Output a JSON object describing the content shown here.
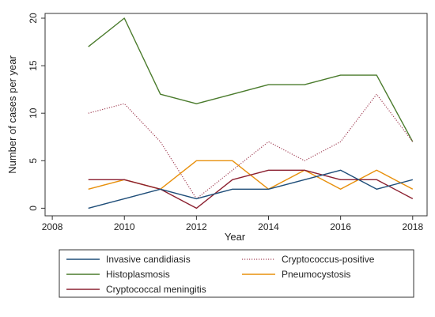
{
  "chart_data": {
    "type": "line",
    "xlabel": "Year",
    "ylabel": "Number of cases per year",
    "xlim": [
      2007.8,
      2018.4
    ],
    "ylim": [
      -0.8,
      20.5
    ],
    "x_ticks": [
      "2008",
      "2010",
      "2012",
      "2014",
      "2016",
      "2018"
    ],
    "y_ticks": [
      "0",
      "5",
      "10",
      "15",
      "20"
    ],
    "grid": false,
    "legend_position": "bottom",
    "x": [
      2009,
      2010,
      2011,
      2012,
      2013,
      2014,
      2015,
      2016,
      2017,
      2018
    ],
    "series": [
      {
        "name": "Invasive candidiasis",
        "color": "#1f4e79",
        "dash": "solid",
        "values": [
          0,
          1,
          2,
          1,
          2,
          2,
          3,
          4,
          2,
          3
        ]
      },
      {
        "name": "Cryptococcus-positive",
        "color": "#a34459",
        "dash": "dotted",
        "values": [
          10,
          11,
          7,
          1,
          4,
          7,
          5,
          7,
          12,
          7
        ]
      },
      {
        "name": "Histoplasmosis",
        "color": "#4a7b2c",
        "dash": "solid",
        "values": [
          17,
          20,
          12,
          11,
          12,
          13,
          13,
          14,
          14,
          7
        ]
      },
      {
        "name": "Pneumocystosis",
        "color": "#e8900c",
        "dash": "solid",
        "values": [
          2,
          3,
          2,
          5,
          5,
          2,
          4,
          2,
          4,
          2
        ]
      },
      {
        "name": "Cryptococcal meningitis",
        "color": "#8b2030",
        "dash": "solid",
        "values": [
          3,
          3,
          2,
          0,
          3,
          4,
          4,
          3,
          3,
          1
        ]
      }
    ]
  }
}
